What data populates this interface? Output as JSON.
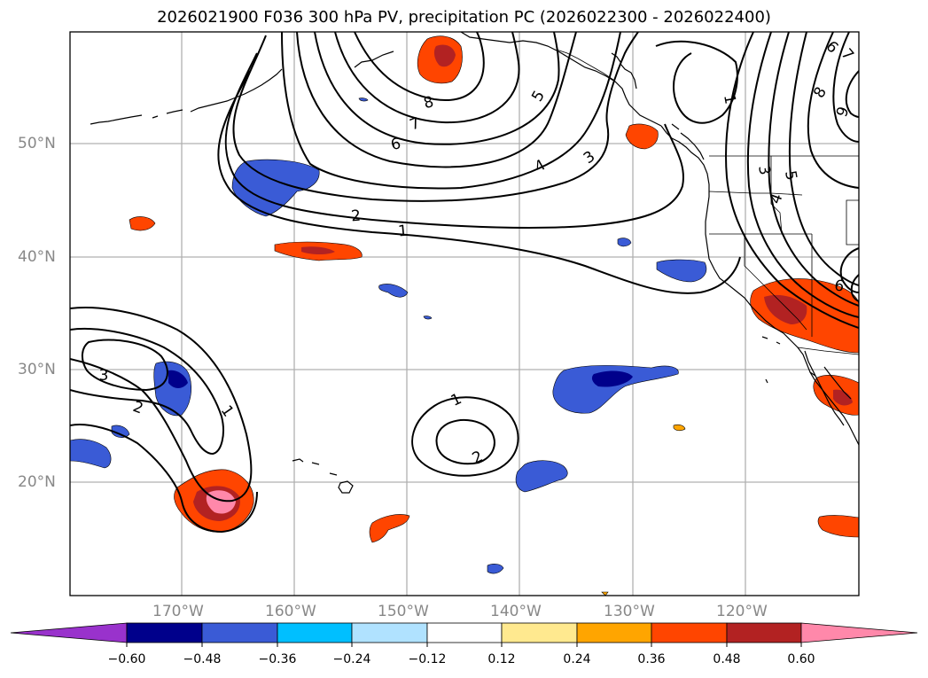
{
  "title": "2026021900 F036 300 hPa PV, precipitation PC (2026022300 - 2026022400)",
  "map": {
    "lat_labels": [
      "50°N",
      "40°N",
      "30°N",
      "20°N"
    ],
    "lon_labels": [
      "170°W",
      "160°W",
      "150°W",
      "140°W",
      "130°W",
      "120°W"
    ],
    "contour_labels": {
      "c8a": "8",
      "c7a": "7",
      "c6a": "6",
      "c5a": "5",
      "c4a": "4",
      "c3a": "3",
      "c2a": "2",
      "c1a": "1",
      "c1b": "1",
      "c3c": "3",
      "c4c": "4",
      "c5c": "5",
      "c6c": "6",
      "c8c": "8",
      "c9c": "9",
      "c7c": "7",
      "c6e": "6",
      "c3w": "3",
      "c2w": "2",
      "c1w": "1",
      "c1m": "1",
      "c2m": "2"
    }
  },
  "colorbar": {
    "labels": [
      "−0.60",
      "−0.48",
      "−0.36",
      "−0.24",
      "−0.12",
      "0.12",
      "0.24",
      "0.36",
      "0.48",
      "0.60"
    ],
    "colors": [
      "#9932cc",
      "#00008b",
      "#3a5bd6",
      "#00bfff",
      "#b0e2ff",
      "#ffffff",
      "#ffe98f",
      "#ffa500",
      "#ff4500",
      "#b22222",
      "#ff88aa"
    ]
  }
}
